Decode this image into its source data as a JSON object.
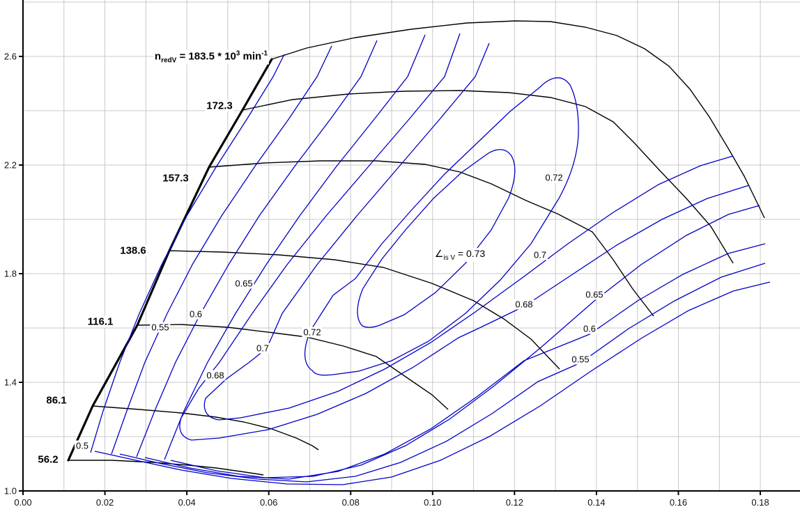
{
  "chart_data": {
    "type": "line",
    "title": "Compressor map: pressure ratio vs reduced mass flow with reduced speed lines and isentropic efficiency contours",
    "xlabel": "",
    "ylabel": "",
    "x_range": [
      0.0,
      0.19
    ],
    "y_range": [
      1.0,
      2.8
    ],
    "x_ticks": [
      0.0,
      0.02,
      0.04,
      0.06,
      0.08,
      0.1,
      0.12,
      0.14,
      0.16,
      0.18
    ],
    "y_ticks": [
      1.0,
      1.4,
      1.8,
      2.2,
      2.6
    ],
    "grid": {
      "x_step": 0.01,
      "y_step": 0.2,
      "visible": true
    },
    "speed_line_annotation": "n_redV = 183.5 * 10^3 min^-1",
    "speed_unit": "10^3 min^-1",
    "surge_line": [
      [
        0.0111,
        1.113
      ],
      [
        0.017,
        1.313
      ],
      [
        0.0279,
        1.61
      ],
      [
        0.0357,
        1.885
      ],
      [
        0.0454,
        2.192
      ],
      [
        0.0536,
        2.403
      ],
      [
        0.0607,
        2.59
      ]
    ],
    "series": [
      {
        "name": "n_red = 56.2",
        "surge_point": [
          0.0111,
          1.113
        ],
        "choke_point": [
          0.0587,
          1.059
        ]
      },
      {
        "name": "n_red = 86.1",
        "surge_point": [
          0.017,
          1.313
        ],
        "choke_point": [
          0.0721,
          1.151
        ]
      },
      {
        "name": "n_red = 116.1",
        "surge_point": [
          0.0279,
          1.61
        ],
        "choke_point": [
          0.1038,
          1.3
        ]
      },
      {
        "name": "n_red = 138.6",
        "surge_point": [
          0.0357,
          1.885
        ],
        "choke_point": [
          0.131,
          1.449
        ]
      },
      {
        "name": "n_red = 157.3",
        "surge_point": [
          0.0454,
          2.192
        ],
        "choke_point": [
          0.154,
          1.644
        ]
      },
      {
        "name": "n_red = 172.3",
        "surge_point": [
          0.0536,
          2.403
        ],
        "choke_point": [
          0.1733,
          1.838
        ]
      },
      {
        "name": "n_red = 183.5",
        "surge_point": [
          0.0607,
          2.59
        ],
        "choke_point": [
          0.181,
          2.005
        ]
      }
    ],
    "efficiency_contours": {
      "symbol": "eta_isV",
      "levels": [
        0.5,
        0.55,
        0.6,
        0.65,
        0.68,
        0.7,
        0.72,
        0.73
      ],
      "peak_label": "0.73"
    },
    "colors": {
      "speed_lines": "#000000",
      "efficiency_contours": "#0000c8",
      "grid": "#c8c8c8",
      "background": "#ffffff"
    },
    "legend_position": "none"
  },
  "axes": {
    "x_tick_labels": [
      "0.00",
      "0.02",
      "0.04",
      "0.06",
      "0.08",
      "0.10",
      "0.12",
      "0.14",
      "0.16",
      "0.18"
    ],
    "y_tick_labels": [
      "1.0",
      "1.4",
      "1.8",
      "2.2",
      "2.6"
    ]
  },
  "labels": {
    "nred": {
      "base": "n",
      "sub": "redV",
      "eq": " = 183.5 * 10",
      "sup": "3",
      "unit": " min",
      "unit_sup": "-1"
    },
    "eta": {
      "symbol": "∠",
      "sub": "is V",
      "rest": " = 0.73"
    },
    "speed": [
      {
        "text": "172.3"
      },
      {
        "text": "157.3"
      },
      {
        "text": "138.6"
      },
      {
        "text": "116.1"
      },
      {
        "text": "86.1"
      },
      {
        "text": "56.2"
      }
    ],
    "contour": [
      {
        "text": "0.5"
      },
      {
        "text": "0.55"
      },
      {
        "text": "0.6"
      },
      {
        "text": "0.65"
      },
      {
        "text": "0.68"
      },
      {
        "text": "0.7"
      },
      {
        "text": "0.72"
      },
      {
        "text": "0.72"
      },
      {
        "text": "0.7"
      },
      {
        "text": "0.68"
      },
      {
        "text": "0.65"
      },
      {
        "text": "0.6"
      },
      {
        "text": "0.55"
      }
    ]
  }
}
